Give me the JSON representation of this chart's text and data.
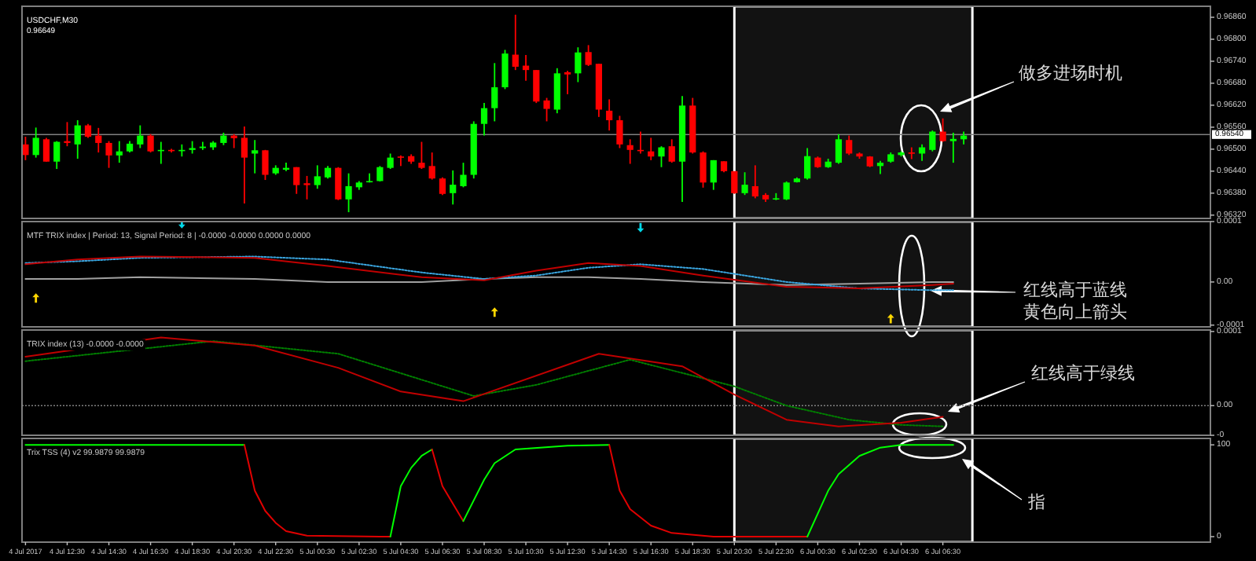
{
  "chart_data": [
    {
      "type": "candlestick",
      "title": "USDCHF,M30",
      "subtitle": "0.96649",
      "tick_labels": "y",
      "xlim": [
        "2017-07-04T10:20",
        "2017-07-06T19:20"
      ],
      "ylim": [
        0.96311,
        0.9689
      ],
      "yticks": [
        {
          "value": 0.9686,
          "label": "0.96860"
        },
        {
          "value": 0.968,
          "label": "0.96800"
        },
        {
          "value": 0.9674,
          "label": "0.96740"
        },
        {
          "value": 0.9668,
          "label": "0.96680"
        },
        {
          "value": 0.9662,
          "label": "0.96620"
        },
        {
          "value": 0.9656,
          "label": "0.96560"
        },
        {
          "value": 0.965,
          "label": "0.96500"
        },
        {
          "value": 0.9644,
          "label": "0.96440"
        },
        {
          "value": 0.9638,
          "label": "0.96380"
        },
        {
          "value": 0.9632,
          "label": "0.96320"
        }
      ],
      "ref_lines": [
        {
          "axis": "y",
          "value": 0.9654,
          "label": "0.96540",
          "color": "#808080"
        }
      ],
      "bands": [
        {
          "axis": "x",
          "from": "2017-07-05T20:30",
          "to": "2017-07-06T07:55",
          "color": "#ffffff"
        }
      ],
      "annotations": [
        "做多进场时机"
      ],
      "x": [
        "2017-07-04T10:30",
        "2017-07-04T11:00",
        "2017-07-04T11:30",
        "2017-07-04T12:00",
        "2017-07-04T12:30",
        "2017-07-04T13:00",
        "2017-07-04T13:30",
        "2017-07-04T14:00",
        "2017-07-04T14:30",
        "2017-07-04T15:00",
        "2017-07-04T15:30",
        "2017-07-04T16:00",
        "2017-07-04T16:30",
        "2017-07-04T17:00",
        "2017-07-04T17:30",
        "2017-07-04T18:00",
        "2017-07-04T18:30",
        "2017-07-04T19:00",
        "2017-07-04T19:30",
        "2017-07-04T20:00",
        "2017-07-04T20:30",
        "2017-07-04T21:00",
        "2017-07-04T21:30",
        "2017-07-04T22:00",
        "2017-07-04T22:30",
        "2017-07-04T23:00",
        "2017-07-04T23:30",
        "2017-07-05T00:00",
        "2017-07-05T00:30",
        "2017-07-05T01:00",
        "2017-07-05T01:30",
        "2017-07-05T02:00",
        "2017-07-05T02:30",
        "2017-07-05T03:00",
        "2017-07-05T03:30",
        "2017-07-05T04:00",
        "2017-07-05T04:30",
        "2017-07-05T05:00",
        "2017-07-05T05:30",
        "2017-07-05T06:00",
        "2017-07-05T06:30",
        "2017-07-05T07:00",
        "2017-07-05T07:30",
        "2017-07-05T08:00",
        "2017-07-05T08:30",
        "2017-07-05T09:00",
        "2017-07-05T09:30",
        "2017-07-05T10:00",
        "2017-07-05T10:30",
        "2017-07-05T11:00",
        "2017-07-05T11:30",
        "2017-07-05T12:00",
        "2017-07-05T12:30",
        "2017-07-05T13:00",
        "2017-07-05T13:30",
        "2017-07-05T14:00",
        "2017-07-05T14:30",
        "2017-07-05T15:00",
        "2017-07-05T15:30",
        "2017-07-05T16:00",
        "2017-07-05T16:30",
        "2017-07-05T17:00",
        "2017-07-05T17:30",
        "2017-07-05T18:00",
        "2017-07-05T18:30",
        "2017-07-05T19:00",
        "2017-07-05T19:30",
        "2017-07-05T20:00",
        "2017-07-05T20:30",
        "2017-07-05T21:00",
        "2017-07-05T21:30",
        "2017-07-05T22:00",
        "2017-07-05T22:30",
        "2017-07-05T23:00",
        "2017-07-05T23:30",
        "2017-07-06T00:00",
        "2017-07-06T00:30",
        "2017-07-06T01:00",
        "2017-07-06T01:30",
        "2017-07-06T02:00",
        "2017-07-06T02:30",
        "2017-07-06T03:00",
        "2017-07-06T03:30",
        "2017-07-06T04:00",
        "2017-07-06T04:30",
        "2017-07-06T05:00",
        "2017-07-06T05:30",
        "2017-07-06T06:00",
        "2017-07-06T06:30",
        "2017-07-06T07:00",
        "2017-07-06T07:30"
      ],
      "ohlc": [
        [
          0.96513,
          0.96534,
          0.9647,
          0.96484
        ],
        [
          0.96484,
          0.96559,
          0.96477,
          0.96531
        ],
        [
          0.96527,
          0.96531,
          0.96466,
          0.96466
        ],
        [
          0.96466,
          0.96522,
          0.96446,
          0.9652
        ],
        [
          0.96522,
          0.96574,
          0.96508,
          0.96517
        ],
        [
          0.96513,
          0.96579,
          0.96474,
          0.96565
        ],
        [
          0.96565,
          0.96569,
          0.96531,
          0.96534
        ],
        [
          0.96537,
          0.96558,
          0.96491,
          0.96517
        ],
        [
          0.96517,
          0.96522,
          0.96449,
          0.96483
        ],
        [
          0.96483,
          0.96522,
          0.96463,
          0.96494
        ],
        [
          0.96494,
          0.96522,
          0.96491,
          0.96515
        ],
        [
          0.96513,
          0.96565,
          0.96503,
          0.96537
        ],
        [
          0.96537,
          0.96541,
          0.96491,
          0.96494
        ],
        [
          0.96495,
          0.9652,
          0.9646,
          0.96498
        ],
        [
          0.96498,
          0.96501,
          0.96491,
          0.96495
        ],
        [
          0.96495,
          0.96513,
          0.9648,
          0.96498
        ],
        [
          0.96498,
          0.96522,
          0.96488,
          0.96503
        ],
        [
          0.96503,
          0.9652,
          0.96498,
          0.96507
        ],
        [
          0.96505,
          0.96522,
          0.96498,
          0.96518
        ],
        [
          0.96517,
          0.96545,
          0.96511,
          0.96537
        ],
        [
          0.96537,
          0.96541,
          0.96503,
          0.9653
        ],
        [
          0.96531,
          0.96562,
          0.96352,
          0.96477
        ],
        [
          0.96488,
          0.96525,
          0.96434,
          0.96497
        ],
        [
          0.96497,
          0.96498,
          0.96416,
          0.9643
        ],
        [
          0.96434,
          0.96456,
          0.9643,
          0.96449
        ],
        [
          0.96444,
          0.96463,
          0.9644,
          0.96449
        ],
        [
          0.96451,
          0.96451,
          0.96378,
          0.96402
        ],
        [
          0.96407,
          0.96427,
          0.96363,
          0.96402
        ],
        [
          0.96402,
          0.96456,
          0.96392,
          0.96426
        ],
        [
          0.96423,
          0.96454,
          0.9642,
          0.96449
        ],
        [
          0.96449,
          0.96451,
          0.96361,
          0.96363
        ],
        [
          0.96363,
          0.96434,
          0.96328,
          0.96399
        ],
        [
          0.96396,
          0.96413,
          0.96389,
          0.96409
        ],
        [
          0.9641,
          0.96434,
          0.96409,
          0.96413
        ],
        [
          0.96413,
          0.96454,
          0.96412,
          0.96451
        ],
        [
          0.96449,
          0.96488,
          0.96446,
          0.96477
        ],
        [
          0.9648,
          0.96483,
          0.96454,
          0.96477
        ],
        [
          0.96481,
          0.96486,
          0.9646,
          0.96466
        ],
        [
          0.96463,
          0.9652,
          0.96446,
          0.96449
        ],
        [
          0.96454,
          0.96491,
          0.96417,
          0.9642
        ],
        [
          0.9642,
          0.96423,
          0.96375,
          0.96378
        ],
        [
          0.9638,
          0.96442,
          0.96349,
          0.96403
        ],
        [
          0.96399,
          0.96463,
          0.96396,
          0.9643
        ],
        [
          0.9643,
          0.96576,
          0.9642,
          0.96569
        ],
        [
          0.96569,
          0.96626,
          0.96537,
          0.96612
        ],
        [
          0.96612,
          0.96735,
          0.96576,
          0.96669
        ],
        [
          0.96669,
          0.96771,
          0.96664,
          0.96761
        ],
        [
          0.96758,
          0.96867,
          0.96716,
          0.96725
        ],
        [
          0.96728,
          0.96757,
          0.96687,
          0.96716
        ],
        [
          0.96716,
          0.96716,
          0.96626,
          0.9663
        ],
        [
          0.96633,
          0.9664,
          0.96576,
          0.9661
        ],
        [
          0.96608,
          0.96721,
          0.96598,
          0.96707
        ],
        [
          0.9671,
          0.96714,
          0.9665,
          0.96704
        ],
        [
          0.96707,
          0.96778,
          0.96683,
          0.96764
        ],
        [
          0.96765,
          0.96784,
          0.96727,
          0.9673
        ],
        [
          0.96733,
          0.96733,
          0.96588,
          0.96608
        ],
        [
          0.96605,
          0.96636,
          0.96551,
          0.96579
        ],
        [
          0.96579,
          0.96591,
          0.96503,
          0.96513
        ],
        [
          0.96511,
          0.96527,
          0.9646,
          0.96498
        ],
        [
          0.96498,
          0.96548,
          0.96488,
          0.96495
        ],
        [
          0.96494,
          0.96531,
          0.9647,
          0.9648
        ],
        [
          0.9648,
          0.96508,
          0.96451,
          0.96505
        ],
        [
          0.96508,
          0.96527,
          0.96463,
          0.96466
        ],
        [
          0.96466,
          0.96645,
          0.96356,
          0.96619
        ],
        [
          0.96619,
          0.9664,
          0.96488,
          0.96491
        ],
        [
          0.96491,
          0.96494,
          0.96395,
          0.96409
        ],
        [
          0.96409,
          0.9647,
          0.96389,
          0.9647
        ],
        [
          0.96467,
          0.96467,
          0.96437,
          0.9644
        ],
        [
          0.9644,
          0.9644,
          0.96378,
          0.9638
        ],
        [
          0.9638,
          0.96437,
          0.96375,
          0.96403
        ],
        [
          0.96399,
          0.96456,
          0.96366,
          0.96371
        ],
        [
          0.96375,
          0.9638,
          0.96356,
          0.96363
        ],
        [
          0.96363,
          0.9638,
          0.96361,
          0.96366
        ],
        [
          0.96363,
          0.96412,
          0.96361,
          0.96409
        ],
        [
          0.9641,
          0.96423,
          0.96409,
          0.9642
        ],
        [
          0.9642,
          0.96503,
          0.96417,
          0.96481
        ],
        [
          0.96477,
          0.9648,
          0.96449,
          0.96451
        ],
        [
          0.96451,
          0.96474,
          0.96449,
          0.96466
        ],
        [
          0.96463,
          0.96541,
          0.9646,
          0.96527
        ],
        [
          0.96525,
          0.96537,
          0.96484,
          0.96488
        ],
        [
          0.96488,
          0.96491,
          0.96474,
          0.9648
        ],
        [
          0.9648,
          0.96481,
          0.96451,
          0.96453
        ],
        [
          0.96454,
          0.96468,
          0.96432,
          0.96463
        ],
        [
          0.96466,
          0.96491,
          0.96463,
          0.96486
        ],
        [
          0.96484,
          0.96494,
          0.9648,
          0.96491
        ],
        [
          0.96491,
          0.96505,
          0.96473,
          0.96488
        ],
        [
          0.96488,
          0.96513,
          0.96468,
          0.96505
        ],
        [
          0.96498,
          0.96551,
          0.96494,
          0.96548
        ],
        [
          0.96548,
          0.96584,
          0.9652,
          0.96522
        ],
        [
          0.96522,
          0.96545,
          0.96463,
          0.96528
        ],
        [
          0.96527,
          0.96548,
          0.96513,
          0.96537
        ]
      ]
    },
    {
      "type": "line",
      "title": "MTF TRIX index | Period: 13, Signal Period: 8 | -0.0000 -0.0000 0.0000 0.0000",
      "tick_labels": "y",
      "xlim": [
        "2017-07-04T10:20",
        "2017-07-06T19:20"
      ],
      "ylim": [
        -0.000104,
        0.00014
      ],
      "yticks": [
        {
          "value": 0.00014,
          "label": "0.0001"
        },
        {
          "value": 0,
          "label": "0.00"
        },
        {
          "value": -0.0001,
          "label": "-0.0001"
        }
      ],
      "bands": [
        {
          "axis": "x",
          "from": "2017-07-05T20:30",
          "to": "2017-07-06T07:55",
          "color": "#ffffff"
        }
      ],
      "annotations": [
        "红线高于蓝线黄色向上箭头"
      ],
      "series": [
        {
          "color": "#a0a0a0",
          "x": [
            "2017-07-04T10:30",
            "2017-07-04T13:00",
            "2017-07-04T16:00",
            "2017-07-04T21:30",
            "2017-07-05T01:00",
            "2017-07-05T05:30",
            "2017-07-05T08:30",
            "2017-07-05T11:00",
            "2017-07-05T13:30",
            "2017-07-05T16:00",
            "2017-07-05T19:00",
            "2017-07-05T23:00",
            "2017-07-06T02:30",
            "2017-07-06T06:00",
            "2017-07-06T07:00"
          ],
          "values": [
            7e-06,
            7e-06,
            1.1e-05,
            7e-06,
            0,
            0,
            7e-06,
            1.1e-05,
            1.1e-05,
            7e-06,
            0,
            -7e-06,
            -4e-06,
            0,
            0
          ]
        },
        {
          "color": "#3aa6e0",
          "line_style": "dotted",
          "x": [
            "2017-07-04T10:30",
            "2017-07-04T13:00",
            "2017-07-04T16:00",
            "2017-07-04T21:30",
            "2017-07-05T01:00",
            "2017-07-05T05:30",
            "2017-07-05T08:30",
            "2017-07-05T11:00",
            "2017-07-05T13:30",
            "2017-07-05T16:00",
            "2017-07-05T19:00",
            "2017-07-05T23:00",
            "2017-07-06T02:30",
            "2017-07-06T06:00",
            "2017-07-06T07:00"
          ],
          "values": [
            4.4e-05,
            4.8e-05,
            5.6e-05,
            5.9e-05,
            5.2e-05,
            2.2e-05,
            7e-06,
            1.5e-05,
            3.3e-05,
            4.1e-05,
            3e-05,
            0,
            -1.5e-05,
            -1.9e-05,
            -1.9e-05
          ]
        },
        {
          "color": "#c00000",
          "x": [
            "2017-07-04T10:30",
            "2017-07-04T13:00",
            "2017-07-04T16:00",
            "2017-07-04T21:30",
            "2017-07-05T01:00",
            "2017-07-05T05:30",
            "2017-07-05T08:30",
            "2017-07-05T11:00",
            "2017-07-05T13:30",
            "2017-07-05T16:00",
            "2017-07-05T19:00",
            "2017-07-05T23:00",
            "2017-07-06T02:30",
            "2017-07-06T06:00",
            "2017-07-06T07:00"
          ],
          "values": [
            4.1e-05,
            5.2e-05,
            5.9e-05,
            5.6e-05,
            3.7e-05,
            1.1e-05,
            4e-06,
            2.6e-05,
            4.4e-05,
            3.7e-05,
            1.5e-05,
            -1.1e-05,
            -1.5e-05,
            -7e-06,
            -4e-06
          ]
        },
        {
          "type": "scatter",
          "marker": "triangle",
          "color": "#ffd700",
          "x": [
            "2017-07-04T11:00",
            "2017-07-05T09:00",
            "2017-07-06T04:00"
          ],
          "values": [
            -3.7e-05,
            -7e-05,
            -8.5e-05
          ]
        },
        {
          "type": "scatter",
          "marker": "triangle",
          "color": "#00d8e8",
          "x": [
            "2017-07-04T18:00",
            "2017-07-05T16:00"
          ],
          "values": [
            0.000135,
            0.000126
          ]
        }
      ]
    },
    {
      "type": "line",
      "title": "TRIX index (13) -0.0000 -0.0000",
      "tick_labels": "y",
      "xlim": [
        "2017-07-04T10:20",
        "2017-07-06T19:20"
      ],
      "ylim": [
        -4e-05,
        0.000102
      ],
      "yticks": [
        {
          "value": 0.0001,
          "label": "0.0001"
        },
        {
          "value": 0,
          "label": "0.00"
        },
        {
          "value": -4e-05,
          "label": "-0"
        }
      ],
      "ref_lines": [
        {
          "axis": "y",
          "value": 0,
          "color": "#808080",
          "line_style": "dotted"
        }
      ],
      "bands": [
        {
          "axis": "x",
          "from": "2017-07-05T20:30",
          "to": "2017-07-06T07:55",
          "color": "#ffffff"
        }
      ],
      "annotations": [
        "红线高于绿线"
      ],
      "series": [
        {
          "color": "#008000",
          "line_style": "dotted",
          "x": [
            "2017-07-04T10:30",
            "2017-07-04T19:30",
            "2017-07-05T01:30",
            "2017-07-05T08:00",
            "2017-07-05T11:00",
            "2017-07-05T15:30",
            "2017-07-05T20:30",
            "2017-07-05T23:00",
            "2017-07-06T02:00",
            "2017-07-06T04:30",
            "2017-07-06T06:30"
          ],
          "values": [
            6e-05,
            8.7e-05,
            7e-05,
            1.3e-05,
            2.8e-05,
            6.2e-05,
            2.6e-05,
            0,
            -1.9e-05,
            -2.6e-05,
            -2.8e-05
          ]
        },
        {
          "color": "#c00000",
          "x": [
            "2017-07-04T10:30",
            "2017-07-04T17:00",
            "2017-07-04T21:30",
            "2017-07-05T01:30",
            "2017-07-05T04:30",
            "2017-07-05T07:30",
            "2017-07-05T14:00",
            "2017-07-05T18:00",
            "2017-07-05T20:30",
            "2017-07-05T23:00",
            "2017-07-06T01:30",
            "2017-07-06T04:30",
            "2017-07-06T06:30"
          ],
          "values": [
            6.6e-05,
            9.2e-05,
            8.1e-05,
            5.1e-05,
            1.9e-05,
            6e-06,
            7e-05,
            5.3e-05,
            1.5e-05,
            -1.9e-05,
            -2.8e-05,
            -2.3e-05,
            -1.5e-05
          ]
        }
      ]
    },
    {
      "type": "line",
      "title": "Trix TSS (4) v2 99.9879 99.9879",
      "xlim": [
        "2017-07-04T10:20",
        "2017-07-06T19:20"
      ],
      "ylim": [
        -6,
        107
      ],
      "yticks": [
        100,
        0
      ],
      "xticks": [
        {
          "value": "2017-07-04T10:30",
          "label": "4 Jul 2017"
        },
        {
          "value": "2017-07-04T12:30",
          "label": "4 Jul 12:30"
        },
        {
          "value": "2017-07-04T14:30",
          "label": "4 Jul 14:30"
        },
        {
          "value": "2017-07-04T16:30",
          "label": "4 Jul 16:30"
        },
        {
          "value": "2017-07-04T18:30",
          "label": "4 Jul 18:30"
        },
        {
          "value": "2017-07-04T20:30",
          "label": "4 Jul 20:30"
        },
        {
          "value": "2017-07-04T22:30",
          "label": "4 Jul 22:30"
        },
        {
          "value": "2017-07-05T00:30",
          "label": "5 Jul 00:30"
        },
        {
          "value": "2017-07-05T02:30",
          "label": "5 Jul 02:30"
        },
        {
          "value": "2017-07-05T04:30",
          "label": "5 Jul 04:30"
        },
        {
          "value": "2017-07-05T06:30",
          "label": "5 Jul 06:30"
        },
        {
          "value": "2017-07-05T08:30",
          "label": "5 Jul 08:30"
        },
        {
          "value": "2017-07-05T10:30",
          "label": "5 Jul 10:30"
        },
        {
          "value": "2017-07-05T12:30",
          "label": "5 Jul 12:30"
        },
        {
          "value": "2017-07-05T14:30",
          "label": "5 Jul 14:30"
        },
        {
          "value": "2017-07-05T16:30",
          "label": "5 Jul 16:30"
        },
        {
          "value": "2017-07-05T18:30",
          "label": "5 Jul 18:30"
        },
        {
          "value": "2017-07-05T20:30",
          "label": "5 Jul 20:30"
        },
        {
          "value": "2017-07-05T22:30",
          "label": "5 Jul 22:30"
        },
        {
          "value": "2017-07-06T00:30",
          "label": "6 Jul 00:30"
        },
        {
          "value": "2017-07-06T02:30",
          "label": "6 Jul 02:30"
        },
        {
          "value": "2017-07-06T04:30",
          "label": "6 Jul 04:30"
        },
        {
          "value": "2017-07-06T06:30",
          "label": "6 Jul 06:30"
        }
      ],
      "bands": [
        {
          "axis": "x",
          "from": "2017-07-05T20:30",
          "to": "2017-07-06T07:55",
          "color": "#ffffff"
        }
      ],
      "annotations": [
        "指"
      ],
      "series": [
        {
          "color": "#00ff00",
          "x": [
            "2017-07-04T10:30",
            "2017-07-04T20:30",
            "2017-07-04T21:00"
          ],
          "values": [
            100,
            100,
            100
          ]
        },
        {
          "color": "#e00000",
          "x": [
            "2017-07-04T21:00",
            "2017-07-04T21:30",
            "2017-07-04T22:00",
            "2017-07-04T22:30",
            "2017-07-04T23:00",
            "2017-07-05T00:00",
            "2017-07-05T03:30",
            "2017-07-05T04:00"
          ],
          "values": [
            100,
            50,
            28,
            15,
            6,
            1,
            0,
            0
          ]
        },
        {
          "color": "#00ff00",
          "x": [
            "2017-07-05T04:00",
            "2017-07-05T04:30",
            "2017-07-05T05:00",
            "2017-07-05T05:30",
            "2017-07-05T06:00"
          ],
          "values": [
            0,
            55,
            75,
            88,
            95
          ]
        },
        {
          "color": "#e00000",
          "x": [
            "2017-07-05T06:00",
            "2017-07-05T06:30",
            "2017-07-05T07:30"
          ],
          "values": [
            95,
            55,
            17
          ]
        },
        {
          "color": "#00ff00",
          "x": [
            "2017-07-05T07:30",
            "2017-07-05T08:30",
            "2017-07-05T09:00",
            "2017-07-05T10:00",
            "2017-07-05T12:30",
            "2017-07-05T14:30"
          ],
          "values": [
            17,
            62,
            80,
            95,
            99,
            100
          ]
        },
        {
          "color": "#e00000",
          "x": [
            "2017-07-05T14:30",
            "2017-07-05T15:00",
            "2017-07-05T15:30",
            "2017-07-05T16:30",
            "2017-07-05T17:30",
            "2017-07-05T19:30",
            "2017-07-06T00:00"
          ],
          "values": [
            100,
            50,
            30,
            12,
            4,
            0,
            0
          ]
        },
        {
          "color": "#00ff00",
          "x": [
            "2017-07-06T00:00",
            "2017-07-06T01:00",
            "2017-07-06T01:30",
            "2017-07-06T02:30",
            "2017-07-06T03:30",
            "2017-07-06T04:30",
            "2017-07-06T07:00"
          ],
          "values": [
            0,
            50,
            68,
            88,
            97,
            100,
            100
          ]
        }
      ]
    }
  ]
}
